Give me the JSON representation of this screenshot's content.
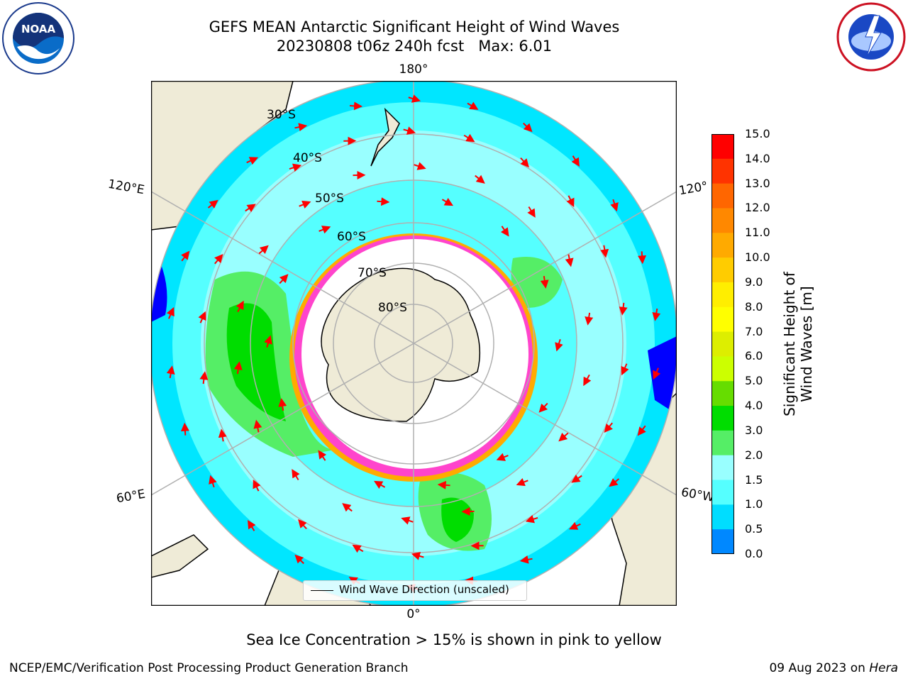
{
  "title": {
    "line1": "GEFS MEAN Antarctic Significant Height of Wind Waves",
    "line2": "20230808 t06z 240h fcst   Max: 6.01"
  },
  "longitude_labels": {
    "top": "180°",
    "bottom": "0°",
    "upper_left": "120°E",
    "lower_left": "60°E",
    "upper_right": "120°",
    "lower_right": "60°W"
  },
  "latitude_labels": [
    "30°S",
    "40°S",
    "50°S",
    "60°S",
    "70°S",
    "80°S"
  ],
  "legend": {
    "label": "Wind Wave Direction (unscaled)"
  },
  "colorbar": {
    "label": "Significant Height of Wind Waves [m]",
    "ticks": [
      "15.0",
      "14.0",
      "13.0",
      "12.0",
      "11.0",
      "10.0",
      "9.0",
      "8.0",
      "7.0",
      "6.0",
      "5.0",
      "4.0",
      "3.0",
      "2.0",
      "1.5",
      "1.0",
      "0.5",
      "0.0"
    ],
    "colors": [
      "#ff0000",
      "#ff3300",
      "#ff6600",
      "#ff8800",
      "#ffaa00",
      "#ffcc00",
      "#ffee00",
      "#ffff00",
      "#ddee00",
      "#ccff00",
      "#66dd00",
      "#00dd00",
      "#55ee66",
      "#99ffff",
      "#55ffff",
      "#00ddff",
      "#0088ff",
      "#0000ff"
    ]
  },
  "notes": {
    "ice": "Sea Ice Concentration > 15% is shown in pink to yellow"
  },
  "footer": {
    "left": "NCEP/EMC/Verification Post Processing Product Generation Branch",
    "right_date": "09 Aug 2023 on ",
    "right_machine": "Hera"
  },
  "logos": {
    "noaa": "NOAA",
    "nws": "NATIONAL WEATHER SERVICE"
  },
  "colors": {
    "land": "#efebd7",
    "ocean_low": "#00e6ff",
    "ocean_mid": "#99ffff",
    "ocean_high": "#33ee33",
    "ice": "#ff44cc",
    "ice_edge": "#ffaa00",
    "arrow": "#ff0000"
  }
}
